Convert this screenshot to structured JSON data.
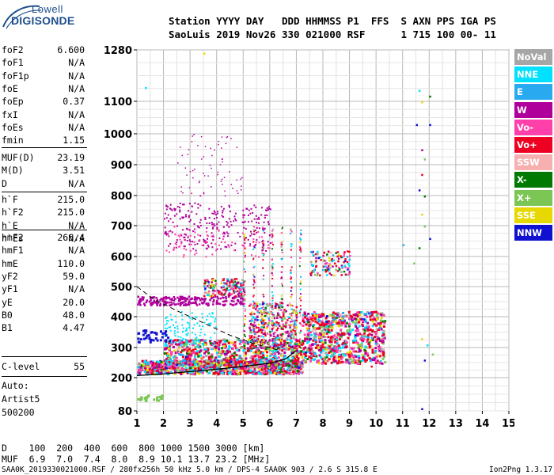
{
  "logo": {
    "top": "Lowell",
    "bottom": "DIGISONDE"
  },
  "header": {
    "line1": "Station YYYY DAY   DDD HHMMSS P1  FFS  S AXN PPS IGA PS",
    "line2": "SaoLuis 2019 Nov26 330 021000 RSF      1 715 100 00- 11"
  },
  "params_group1": [
    {
      "name": "foF2",
      "value": "6.600"
    },
    {
      "name": "foF1",
      "value": "N/A"
    },
    {
      "name": "foF1p",
      "value": "N/A"
    },
    {
      "name": "foE",
      "value": "N/A"
    },
    {
      "name": "foEp",
      "value": "0.37"
    },
    {
      "name": "fxI",
      "value": "N/A"
    },
    {
      "name": "foEs",
      "value": "N/A"
    },
    {
      "name": "fmin",
      "value": "1.15"
    }
  ],
  "params_group2": [
    {
      "name": "MUF(D)",
      "value": "23.19"
    },
    {
      "name": "M(D)",
      "value": "3.51"
    },
    {
      "name": "D",
      "value": "N/A"
    }
  ],
  "params_group3": [
    {
      "name": "h`F",
      "value": "215.0"
    },
    {
      "name": "h`F2",
      "value": "215.0"
    },
    {
      "name": "h`E",
      "value": "N/A"
    },
    {
      "name": "h`Es",
      "value": "N/A"
    }
  ],
  "params_group4": [
    {
      "name": "hmF2",
      "value": "266.4"
    },
    {
      "name": "hmF1",
      "value": "N/A"
    },
    {
      "name": "hmE",
      "value": "110.0"
    },
    {
      "name": "yF2",
      "value": "59.0"
    },
    {
      "name": "yF1",
      "value": "N/A"
    },
    {
      "name": "yE",
      "value": "20.0"
    },
    {
      "name": "B0",
      "value": "48.0"
    },
    {
      "name": "B1",
      "value": "4.47"
    }
  ],
  "clevel": {
    "name": "C-level",
    "value": "55"
  },
  "auto": {
    "line1": "Auto:",
    "line2": "Artist5",
    "line3": "500200"
  },
  "legend": [
    {
      "label": "NoVal",
      "color": "#a6a6a6"
    },
    {
      "label": "NNE",
      "color": "#00e0ff"
    },
    {
      "label": "E",
      "color": "#29a9ef"
    },
    {
      "label": "W",
      "color": "#b0009c"
    },
    {
      "label": "Vo-",
      "color": "#ff3faa"
    },
    {
      "label": "Vo+",
      "color": "#ee0022"
    },
    {
      "label": "SSW",
      "color": "#f6b0b0"
    },
    {
      "label": "X-",
      "color": "#007a00"
    },
    {
      "label": "X+",
      "color": "#7cc655"
    },
    {
      "label": "SSE",
      "color": "#e6d800"
    },
    {
      "label": "NNW",
      "color": "#1010d0"
    }
  ],
  "chart_data": {
    "type": "scatter",
    "xlim": [
      1,
      15
    ],
    "x_ticks": [
      "1",
      "2",
      "3",
      "4",
      "5",
      "6",
      "7",
      "8",
      "9",
      "10",
      "11",
      "12",
      "13",
      "14",
      "15"
    ],
    "y_ticks": [
      "1280",
      "1100",
      "1000",
      "900",
      "800",
      "700",
      "600",
      "500",
      "400",
      "300",
      "200",
      "80"
    ],
    "ylim": [
      80,
      1280
    ],
    "grid": true,
    "trace_curve": [
      [
        1.0,
        207
      ],
      [
        2.0,
        212
      ],
      [
        3.0,
        220
      ],
      [
        4.0,
        228
      ],
      [
        5.0,
        237
      ],
      [
        6.0,
        248
      ],
      [
        6.6,
        262
      ],
      [
        7.0,
        290
      ]
    ]
  },
  "bottom": {
    "d_line": "D    100  200  400  600  800 1000 1500 3000 [km]",
    "muf_line": "MUF  6.9  7.0  7.4  8.0  8.9 10.1 13.7 23.2 [MHz]"
  },
  "footer": {
    "left": "SAA0K_2019330021000.RSF / 280fx256h 50 kHz 5.0 km / DPS-4 SAA0K 903 / 2.6 S 315.8 E",
    "right": "Ion2Png 1.3.17"
  }
}
